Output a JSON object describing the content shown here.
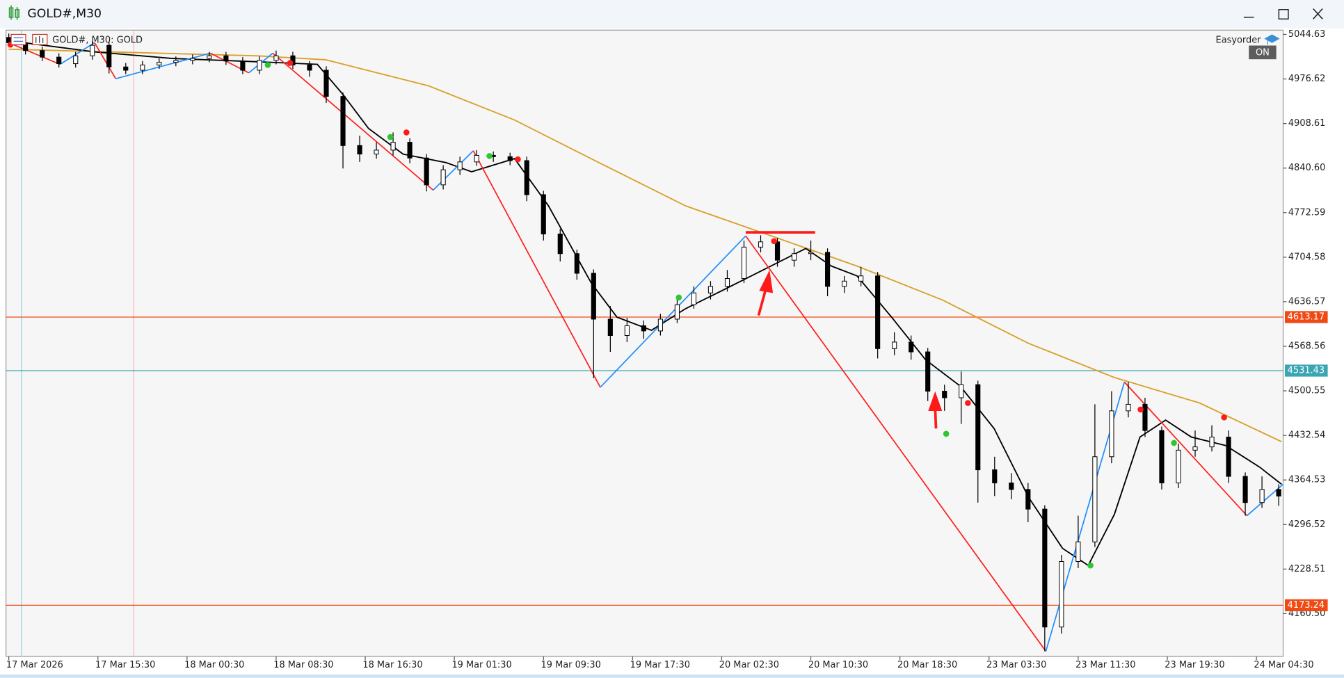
{
  "window": {
    "title": "GOLD#,M30"
  },
  "panel": {
    "button": "Easyorder",
    "status": "ON"
  },
  "chart_data": {
    "type": "candlestick",
    "label": "GOLD#, M30:  GOLD",
    "xlim": [
      -0.5,
      228.8
    ],
    "ylim": [
      4095.1,
      5051.2
    ],
    "yticks": [
      5044.63,
      4976.62,
      4908.61,
      {
        "value": 4840.6,
        "label": "4840.60"
      },
      4772.59,
      4704.58,
      4636.57,
      4568.56,
      4500.55,
      4432.54,
      4364.53,
      4296.52,
      4228.51,
      {
        "value": 4160.5,
        "label": "4160.50"
      }
    ],
    "xticks": [
      {
        "value": 0,
        "label": "17 Mar 2026"
      },
      {
        "value": 16,
        "label": "17 Mar 15:30"
      },
      {
        "value": 32,
        "label": "18 Mar 00:30"
      },
      {
        "value": 48,
        "label": "18 Mar 08:30"
      },
      {
        "value": 64,
        "label": "18 Mar 16:30"
      },
      {
        "value": 80,
        "label": "19 Mar 01:30"
      },
      {
        "value": 96,
        "label": "19 Mar 09:30"
      },
      {
        "value": 112,
        "label": "19 Mar 17:30"
      },
      {
        "value": 128,
        "label": "20 Mar 02:30"
      },
      {
        "value": 144,
        "label": "20 Mar 10:30"
      },
      {
        "value": 160,
        "label": "20 Mar 18:30"
      },
      {
        "value": 176,
        "label": "23 Mar 03:30"
      },
      {
        "value": 192,
        "label": "23 Mar 11:30"
      },
      {
        "value": 208,
        "label": "23 Mar 19:30"
      },
      {
        "value": 224,
        "label": "24 Mar 04:30"
      }
    ],
    "candles": {
      "bull_color": "#ffffff",
      "bear_color": "#000000",
      "outline": "#000000",
      "x": [
        0,
        3,
        6,
        9,
        12,
        15,
        18,
        21,
        24,
        27,
        30,
        33,
        36,
        39,
        42,
        45,
        48,
        51,
        54,
        57,
        60,
        63,
        66,
        69,
        72,
        75,
        78,
        81,
        84,
        87,
        90,
        93,
        96,
        99,
        102,
        105,
        108,
        111,
        114,
        117,
        120,
        123,
        126,
        129,
        132,
        135,
        138,
        141,
        144,
        147,
        150,
        153,
        156,
        159,
        162,
        165,
        168,
        171,
        174,
        177,
        180,
        183,
        186,
        189,
        192,
        195,
        198,
        201,
        204,
        207,
        210,
        213,
        216,
        219,
        222,
        225,
        228
      ],
      "ohlc": [
        [
          5040,
          5046,
          5026,
          5032
        ],
        [
          5032,
          5038,
          5014,
          5020
        ],
        [
          5020,
          5026,
          5004,
          5010
        ],
        [
          5010,
          5016,
          4994,
          5000
        ],
        [
          5000,
          5018,
          4994,
          5012
        ],
        [
          5012,
          5034,
          5006,
          5028
        ],
        [
          5028,
          5034,
          4985,
          4995
        ],
        [
          4995,
          5001,
          4984,
          4990
        ],
        [
          4990,
          5004,
          4984,
          4998
        ],
        [
          4998,
          5008,
          4992,
          5002
        ],
        [
          5002,
          5011,
          4996,
          5005
        ],
        [
          5005,
          5014,
          4999,
          5008
        ],
        [
          5008,
          5018,
          5002,
          5012
        ],
        [
          5012,
          5018,
          4998,
          5004
        ],
        [
          5004,
          5010,
          4984,
          4990
        ],
        [
          4990,
          5011,
          4984,
          5005
        ],
        [
          5005,
          5020,
          4999,
          5012
        ],
        [
          5012,
          5018,
          4992,
          4998
        ],
        [
          4998,
          5004,
          4980,
          4990
        ],
        [
          4990,
          4996,
          4940,
          4950
        ],
        [
          4950,
          4956,
          4840,
          4875
        ],
        [
          4875,
          4890,
          4850,
          4862
        ],
        [
          4862,
          4880,
          4855,
          4868
        ],
        [
          4868,
          4895,
          4860,
          4880
        ],
        [
          4880,
          4886,
          4848,
          4856
        ],
        [
          4856,
          4862,
          4805,
          4815
        ],
        [
          4815,
          4845,
          4808,
          4838
        ],
        [
          4838,
          4858,
          4830,
          4850
        ],
        [
          4850,
          4868,
          4844,
          4860
        ],
        [
          4860,
          4866,
          4850,
          4858
        ],
        [
          4858,
          4864,
          4845,
          4852
        ],
        [
          4852,
          4858,
          4790,
          4800
        ],
        [
          4800,
          4806,
          4730,
          4740
        ],
        [
          4740,
          4748,
          4698,
          4710
        ],
        [
          4710,
          4716,
          4670,
          4680
        ],
        [
          4680,
          4686,
          4520,
          4610
        ],
        [
          4610,
          4630,
          4560,
          4585
        ],
        [
          4585,
          4612,
          4575,
          4600
        ],
        [
          4600,
          4608,
          4580,
          4592
        ],
        [
          4592,
          4618,
          4585,
          4610
        ],
        [
          4610,
          4640,
          4604,
          4632
        ],
        [
          4632,
          4660,
          4626,
          4650
        ],
        [
          4650,
          4668,
          4640,
          4660
        ],
        [
          4660,
          4685,
          4652,
          4672
        ],
        [
          4672,
          4730,
          4665,
          4720
        ],
        [
          4720,
          4738,
          4712,
          4728
        ],
        [
          4728,
          4734,
          4690,
          4700
        ],
        [
          4700,
          4718,
          4690,
          4710
        ],
        [
          4710,
          4730,
          4700,
          4712
        ],
        [
          4712,
          4718,
          4645,
          4660
        ],
        [
          4660,
          4676,
          4650,
          4668
        ],
        [
          4668,
          4690,
          4660,
          4676
        ],
        [
          4676,
          4682,
          4550,
          4565
        ],
        [
          4565,
          4590,
          4555,
          4575
        ],
        [
          4575,
          4585,
          4548,
          4560
        ],
        [
          4560,
          4566,
          4485,
          4500
        ],
        [
          4500,
          4510,
          4470,
          4490
        ],
        [
          4490,
          4530,
          4450,
          4510
        ],
        [
          4510,
          4516,
          4330,
          4380
        ],
        [
          4380,
          4400,
          4340,
          4360
        ],
        [
          4360,
          4375,
          4335,
          4350
        ],
        [
          4350,
          4360,
          4300,
          4320
        ],
        [
          4320,
          4326,
          4103,
          4140
        ],
        [
          4140,
          4250,
          4130,
          4240
        ],
        [
          4240,
          4310,
          4230,
          4270
        ],
        [
          4270,
          4480,
          4262,
          4400
        ],
        [
          4400,
          4500,
          4390,
          4470
        ],
        [
          4470,
          4514,
          4460,
          4480
        ],
        [
          4480,
          4490,
          4430,
          4440
        ],
        [
          4440,
          4446,
          4350,
          4360
        ],
        [
          4360,
          4420,
          4352,
          4410
        ],
        [
          4410,
          4440,
          4400,
          4415
        ],
        [
          4415,
          4448,
          4408,
          4430
        ],
        [
          4430,
          4440,
          4360,
          4370
        ],
        [
          4370,
          4376,
          4310,
          4330
        ],
        [
          4330,
          4370,
          4322,
          4350
        ],
        [
          4350,
          4358,
          4325,
          4340
        ]
      ]
    },
    "lines": [
      {
        "color": "#d9a02a",
        "x": [
          0,
          44.6,
          56.9,
          75.4,
          90.8,
          106.2,
          121.5,
          136.9,
          152.3,
          167.7,
          183.1,
          198.5,
          213.8,
          228.5
        ],
        "values": [
          5022,
          5012,
          5006,
          4966,
          4914,
          4848,
          4783,
          4737,
          4691,
          4639,
          4573,
          4521,
          4482,
          4423
        ]
      },
      {
        "color": "#000000",
        "x": [
          0,
          15.4,
          29.2,
          44.6,
          55.4,
          60,
          64.6,
          70.8,
          78.5,
          83.1,
          90.8,
          96.9,
          104.6,
          109.2,
          115.4,
          121.5,
          127.7,
          133.8,
          143.1,
          147.7,
          152.3,
          158.5,
          164.6,
          170.8,
          176.9,
          183.1,
          189.2,
          193.8,
          198.5,
          203.1,
          207.7,
          212.3,
          218.5,
          224.6,
          228.5
        ],
        "values": [
          5035,
          5018,
          5008,
          5003,
          4999,
          4953,
          4901,
          4862,
          4849,
          4835,
          4855,
          4783,
          4665,
          4613,
          4593,
          4626,
          4652,
          4678,
          4718,
          4691,
          4676,
          4613,
          4548,
          4508,
          4443,
          4338,
          4260,
          4234,
          4312,
          4430,
          4456,
          4430,
          4417,
          4384,
          4358
        ]
      }
    ],
    "zigzag": {
      "up_color": "#1e8fff",
      "down_color": "#ff1f1f",
      "x": [
        0,
        9.2,
        15.4,
        19.2,
        36.2,
        43.1,
        47.4,
        76.2,
        83.4,
        106.2,
        132.3,
        186.2,
        200.3,
        222.3,
        228.8
      ],
      "values": [
        5032,
        4999,
        5032,
        4977,
        5016,
        4986,
        5016,
        4807,
        4867,
        4506,
        4737,
        4103,
        4514,
        4310,
        4358
      ]
    },
    "markers": [
      {
        "color": "#ff1a1a",
        "x": [
          0.3,
          50.5,
          71.4,
          91.4,
          137.4,
          172.2,
          203.2,
          218.2
        ],
        "values": [
          5029,
          5001,
          4895,
          4854,
          4729,
          4482,
          4472,
          4460
        ]
      },
      {
        "color": "#2ec732",
        "x": [
          46.5,
          68.5,
          86.3,
          120.3,
          168.3,
          194.2,
          209.2
        ],
        "values": [
          4998,
          4888,
          4859,
          4643,
          4435,
          4234,
          4421
        ]
      }
    ],
    "levels": [
      {
        "value": 4613.17,
        "color": "#f04a14"
      },
      {
        "value": 4531.43,
        "color": "#3aa6b4"
      },
      {
        "value": 4173.24,
        "color": "#f04a14"
      }
    ]
  }
}
